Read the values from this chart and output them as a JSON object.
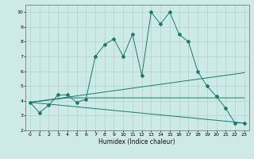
{
  "xlabel": "Humidex (Indice chaleur)",
  "ylabel": "",
  "xlim": [
    -0.5,
    23.5
  ],
  "ylim": [
    2,
    10.5
  ],
  "bg_color": "#ceeae6",
  "grid_color": "#aed4ce",
  "line_color": "#1a7a6e",
  "x_ticks": [
    0,
    1,
    2,
    3,
    4,
    5,
    6,
    7,
    8,
    9,
    10,
    11,
    12,
    13,
    14,
    15,
    16,
    17,
    18,
    19,
    20,
    21,
    22,
    23
  ],
  "y_ticks": [
    2,
    3,
    4,
    5,
    6,
    7,
    8,
    9,
    10
  ],
  "series1_x": [
    0,
    1,
    2,
    3,
    4,
    5,
    6,
    7,
    8,
    9,
    10,
    11,
    12,
    13,
    14,
    15,
    16,
    17,
    18,
    19,
    20,
    21,
    22,
    23
  ],
  "series1_y": [
    3.9,
    3.2,
    3.7,
    4.4,
    4.4,
    3.9,
    4.1,
    7.0,
    7.8,
    8.2,
    7.0,
    8.5,
    5.7,
    10.0,
    9.2,
    10.0,
    8.5,
    8.0,
    6.0,
    5.0,
    4.3,
    3.5,
    2.5,
    2.5
  ],
  "series2_x": [
    0,
    4,
    23
  ],
  "series2_y": [
    3.9,
    4.2,
    4.2
  ],
  "series3_x": [
    0,
    23
  ],
  "series3_y": [
    3.9,
    5.9
  ],
  "series4_x": [
    0,
    23
  ],
  "series4_y": [
    3.9,
    2.5
  ]
}
